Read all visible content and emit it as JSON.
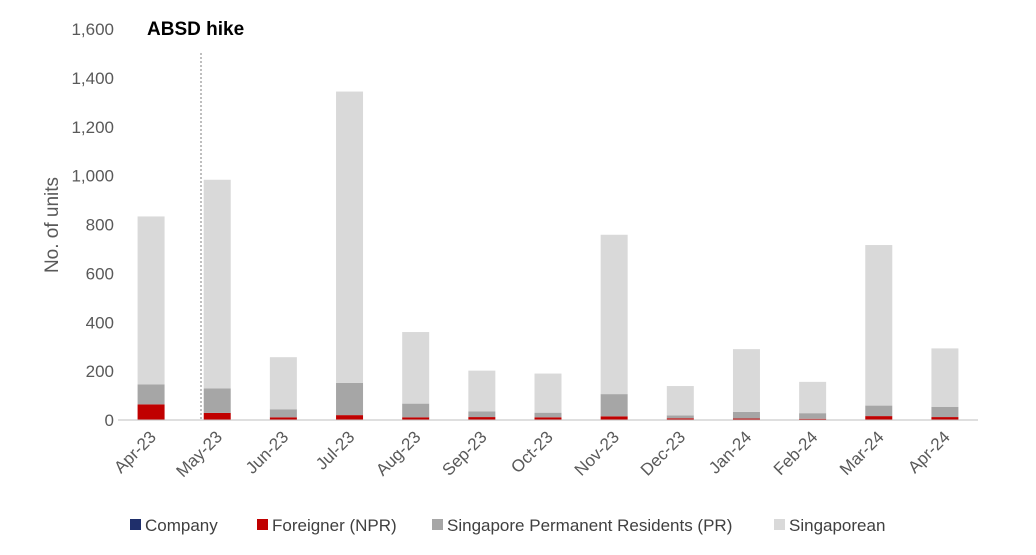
{
  "chart_data": {
    "type": "bar",
    "stacked": true,
    "title": "",
    "xlabel": "",
    "ylabel": "No. of units",
    "ylim": [
      0,
      1600
    ],
    "yticks": [
      "0",
      "200",
      "400",
      "600",
      "800",
      "1,000",
      "1,200",
      "1,400",
      "1,600"
    ],
    "ytick_values": [
      0,
      200,
      400,
      600,
      800,
      1000,
      1200,
      1400,
      1600
    ],
    "grid": false,
    "legend_position": "bottom",
    "categories": [
      "Apr-23",
      "May-23",
      "Jun-23",
      "Jul-23",
      "Aug-23",
      "Sep-23",
      "Oct-23",
      "Nov-23",
      "Dec-23",
      "Jan-24",
      "Feb-24",
      "Mar-24",
      "Apr-24"
    ],
    "series": [
      {
        "name": "Company",
        "color": "#1f2f6b",
        "values": [
          1,
          1,
          1,
          1,
          1,
          1,
          1,
          1,
          1,
          1,
          1,
          1,
          1
        ]
      },
      {
        "name": "Foreigner (NPR)",
        "color": "#c00000",
        "values": [
          63,
          28,
          10,
          19,
          10,
          11,
          10,
          14,
          6,
          5,
          4,
          15,
          11
        ]
      },
      {
        "name": "Singapore Permanent Residents (PR)",
        "color": "#a6a6a6",
        "values": [
          82,
          100,
          33,
          132,
          56,
          23,
          19,
          91,
          12,
          27,
          23,
          43,
          42
        ]
      },
      {
        "name": "Singaporean",
        "color": "#d9d9d9",
        "values": [
          687,
          854,
          213,
          1192,
          293,
          167,
          160,
          652,
          120,
          257,
          128,
          657,
          239
        ]
      }
    ],
    "annotations": [
      {
        "text": "ABSD hike",
        "between": [
          "Apr-23",
          "May-23"
        ],
        "style": "dashed vertical line"
      }
    ]
  }
}
